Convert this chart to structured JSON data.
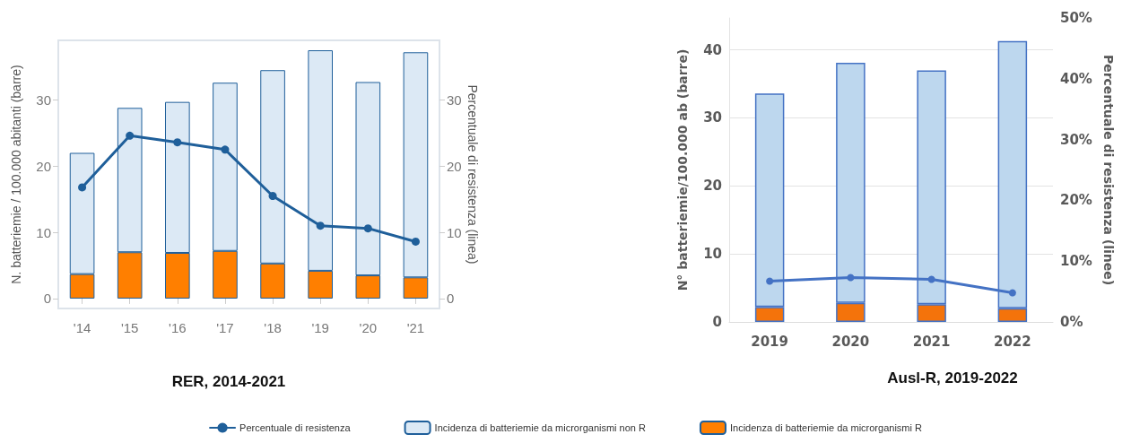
{
  "chart_data": [
    {
      "type": "bar",
      "title": "RER, 2014-2021",
      "ylabel": "N. batteriemie / 100.000 abitanti (barre)",
      "y2label": "Percentuale di resistenza (linea)",
      "categories": [
        "'14",
        "'15",
        "'16",
        "'17",
        "'18",
        "'19",
        "'20",
        "'21"
      ],
      "stacked": true,
      "ylim": [
        -1.5,
        39
      ],
      "yticks": [
        0,
        10,
        20,
        30
      ],
      "y2lim": [
        -1.5,
        39
      ],
      "y2ticks": [
        0,
        10,
        20,
        30
      ],
      "grid": false,
      "legend": "bottom",
      "marker": "circle",
      "line_style": "solid",
      "series": [
        {
          "type": "line",
          "axis": "y2",
          "name": "Percentuale di resistenza",
          "color": "#1f5f9a",
          "values": [
            16.8,
            24.6,
            23.6,
            22.5,
            15.5,
            11.0,
            10.6,
            8.6
          ]
        },
        {
          "name": "Incidenza di batteriemie da microrganismi R",
          "color": "#ff7f00",
          "values": [
            3.7,
            7.0,
            6.9,
            7.2,
            5.3,
            4.2,
            3.5,
            3.2
          ]
        },
        {
          "name": "Incidenza di batteriemie da microrganismi non R",
          "color": "#dce9f5",
          "values": [
            18.3,
            21.8,
            22.8,
            25.4,
            29.2,
            33.3,
            29.2,
            34.0
          ]
        }
      ]
    },
    {
      "type": "bar",
      "title": "Ausl-R, 2019-2022",
      "ylabel": "N° batteriemie/100.000 ab (barre)",
      "y2label": "Percentuale di resistenza (linee)",
      "categories": [
        "2019",
        "2020",
        "2021",
        "2022"
      ],
      "stacked": true,
      "ylim": [
        0,
        44.7
      ],
      "yticks": [
        0,
        10,
        20,
        30,
        40
      ],
      "y2lim": [
        0,
        50
      ],
      "y2ticks": [
        {
          "value": 0,
          "label": "0%"
        },
        {
          "value": 10,
          "label": "10%"
        },
        {
          "value": 20,
          "label": "20%"
        },
        {
          "value": 30,
          "label": "30%"
        },
        {
          "value": 40,
          "label": "40%"
        },
        {
          "value": 50,
          "label": "50%"
        }
      ],
      "grid": "y",
      "marker": "circle",
      "line_style": "solid",
      "series": [
        {
          "type": "line",
          "axis": "y2",
          "color": "#4472c4",
          "values": [
            6.7,
            7.3,
            7.0,
            4.8
          ]
        },
        {
          "color": "#f4730b",
          "values": [
            2.2,
            2.8,
            2.6,
            2.0
          ]
        },
        {
          "color": "#bdd7ee",
          "values": [
            31.4,
            35.3,
            34.4,
            39.3
          ]
        }
      ]
    }
  ]
}
